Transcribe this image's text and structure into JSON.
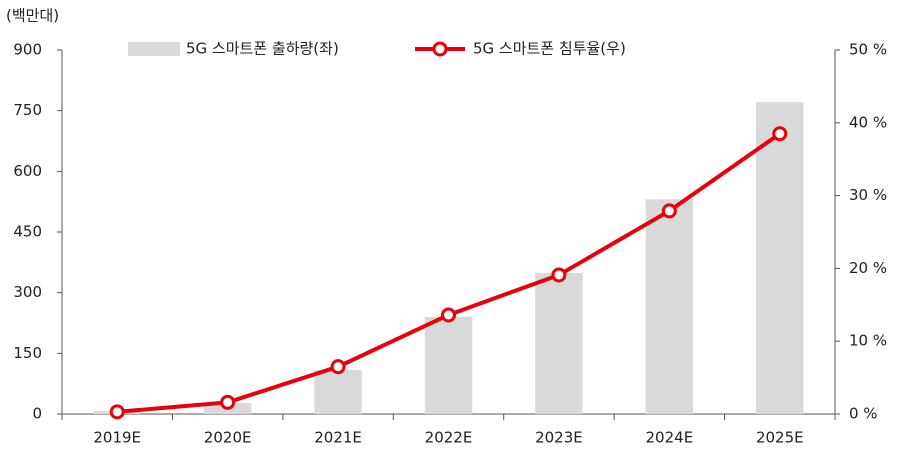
{
  "chart_data": {
    "type": "combo",
    "y_unit_label": "(백만대)",
    "categories": [
      "2019E",
      "2020E",
      "2021E",
      "2022E",
      "2023E",
      "2024E",
      "2025E"
    ],
    "series": [
      {
        "name": "5G 스마트폰 출하량(좌)",
        "type": "bar",
        "color": "#d9d9d9",
        "values": [
          7,
          27,
          109,
          240,
          349,
          531,
          771
        ]
      },
      {
        "name": "5G 스마트폰 침투율(우)",
        "type": "line",
        "axis": "y2",
        "color": "#e8000b",
        "values": [
          0.3,
          1.6,
          6.5,
          13.6,
          19.1,
          27.9,
          38.5
        ]
      }
    ],
    "ylim": [
      0,
      900
    ],
    "yticks": [
      0,
      150,
      300,
      450,
      600,
      750,
      900
    ],
    "y2lim": [
      0,
      50
    ],
    "y2ticks": [
      {
        "value": 0,
        "label": "0 %"
      },
      {
        "value": 10,
        "label": "10 %"
      },
      {
        "value": 20,
        "label": "20 %"
      },
      {
        "value": 30,
        "label": "30 %"
      },
      {
        "value": 40,
        "label": "40 %"
      },
      {
        "value": 50,
        "label": "50 %"
      }
    ],
    "grid": false
  }
}
